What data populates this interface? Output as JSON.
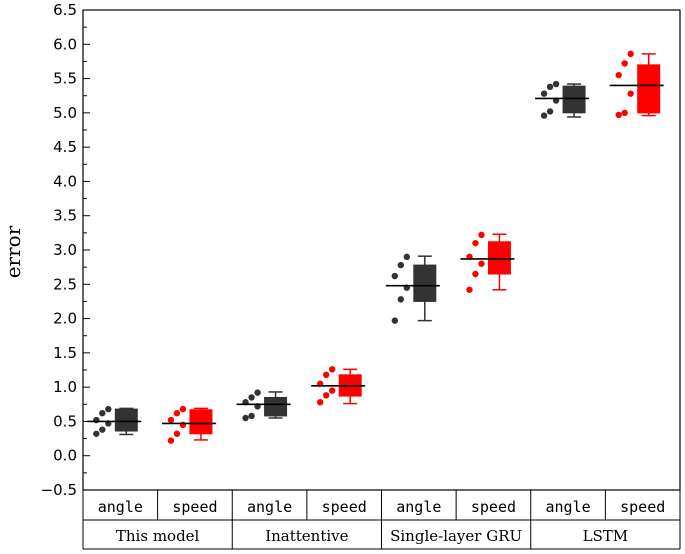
{
  "chart_data": {
    "type": "box",
    "ylabel": "error",
    "ylim": [
      -0.5,
      6.5
    ],
    "yticks": [
      "−0.5",
      "0.0",
      "0.5",
      "1.0",
      "1.5",
      "2.0",
      "2.5",
      "3.0",
      "3.5",
      "4.0",
      "4.5",
      "5.0",
      "5.5",
      "6.0",
      "6.5"
    ],
    "colors": {
      "angle": "#333333",
      "speed": "#ff0000",
      "axis": "#000000"
    },
    "groups": [
      {
        "name": "This model",
        "boxes": [
          {
            "label": "angle",
            "color": "angle",
            "points": [
              0.32,
              0.38,
              0.47,
              0.52,
              0.62,
              0.68
            ],
            "whisker_low": 0.31,
            "q1": 0.36,
            "median": 0.5,
            "q3": 0.68,
            "whisker_high": 0.69
          },
          {
            "label": "speed",
            "color": "speed",
            "points": [
              0.22,
              0.32,
              0.45,
              0.52,
              0.62,
              0.68
            ],
            "whisker_low": 0.23,
            "q1": 0.32,
            "median": 0.47,
            "q3": 0.67,
            "whisker_high": 0.69
          }
        ]
      },
      {
        "name": "Inattentive",
        "boxes": [
          {
            "label": "angle",
            "color": "angle",
            "points": [
              0.55,
              0.58,
              0.72,
              0.78,
              0.85,
              0.92
            ],
            "whisker_low": 0.55,
            "q1": 0.58,
            "median": 0.75,
            "q3": 0.85,
            "whisker_high": 0.93
          },
          {
            "label": "speed",
            "color": "speed",
            "points": [
              0.78,
              0.88,
              0.95,
              1.05,
              1.18,
              1.26
            ],
            "whisker_low": 0.76,
            "q1": 0.87,
            "median": 1.02,
            "q3": 1.18,
            "whisker_high": 1.26
          }
        ]
      },
      {
        "name": "Single-layer GRU",
        "boxes": [
          {
            "label": "angle",
            "color": "angle",
            "points": [
              1.97,
              2.28,
              2.45,
              2.62,
              2.78,
              2.9
            ],
            "whisker_low": 1.97,
            "q1": 2.25,
            "median": 2.48,
            "q3": 2.78,
            "whisker_high": 2.91
          },
          {
            "label": "speed",
            "color": "speed",
            "points": [
              2.42,
              2.65,
              2.8,
              2.9,
              3.1,
              3.22
            ],
            "whisker_low": 2.42,
            "q1": 2.65,
            "median": 2.87,
            "q3": 3.12,
            "whisker_high": 3.23
          }
        ]
      },
      {
        "name": "LSTM",
        "boxes": [
          {
            "label": "angle",
            "color": "angle",
            "points": [
              4.96,
              5.02,
              5.18,
              5.28,
              5.38,
              5.42
            ],
            "whisker_low": 4.94,
            "q1": 5.0,
            "median": 5.21,
            "q3": 5.39,
            "whisker_high": 5.42
          },
          {
            "label": "speed",
            "color": "speed",
            "points": [
              4.97,
              5.0,
              5.28,
              5.55,
              5.72,
              5.86
            ],
            "whisker_low": 4.96,
            "q1": 5.0,
            "median": 5.4,
            "q3": 5.7,
            "whisker_high": 5.86
          }
        ]
      }
    ]
  }
}
